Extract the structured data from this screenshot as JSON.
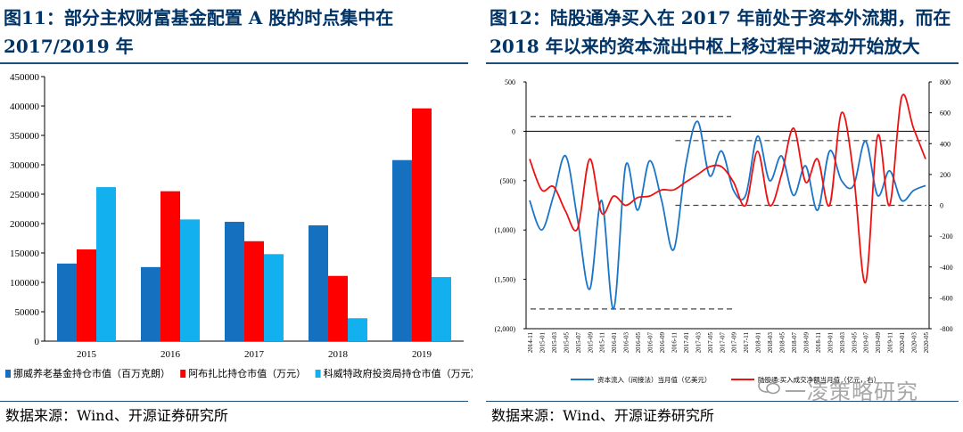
{
  "left": {
    "title": "图11：部分主权财富基金配置 A 股的时点集中在2017/2019 年",
    "source": "数据来源：Wind、开源证券研究所",
    "chart_data": {
      "type": "bar",
      "categories": [
        "2015",
        "2016",
        "2017",
        "2018",
        "2019"
      ],
      "ylim": [
        0,
        450000
      ],
      "yticks": [
        0,
        50000,
        100000,
        150000,
        200000,
        250000,
        300000,
        350000,
        400000,
        450000
      ],
      "series": [
        {
          "name": "挪威养老基金持仓市值（百万克朗）",
          "color": "#1670c0",
          "values": [
            132000,
            126000,
            203000,
            197000,
            308000
          ]
        },
        {
          "name": "阿布扎比持仓市值（万元）",
          "color": "#ff0000",
          "values": [
            156000,
            255000,
            170000,
            111000,
            396000
          ]
        },
        {
          "name": "科威特政府投资局持仓市值（万元）",
          "color": "#12b0ee",
          "values": [
            262000,
            207000,
            148000,
            39000,
            109000
          ]
        }
      ],
      "legend": "bottom",
      "grid": false
    }
  },
  "right": {
    "title": "图12：陆股通净买入在 2017 年前处于资本外流期，而在2018 年以来的资本流出中枢上移过程中波动开始放大",
    "source": "数据来源：Wind、开源证券研究所",
    "watermark": "一凌策略研究",
    "chart_data": {
      "type": "line",
      "x": [
        "2014-11",
        "2015-01",
        "2015-03",
        "2015-05",
        "2015-07",
        "2015-09",
        "2015-11",
        "2016-01",
        "2016-03",
        "2016-05",
        "2016-07",
        "2016-09",
        "2016-11",
        "2017-01",
        "2017-03",
        "2017-05",
        "2017-07",
        "2017-09",
        "2017-11",
        "2018-01",
        "2018-03",
        "2018-05",
        "2018-07",
        "2018-09",
        "2018-11",
        "2019-01",
        "2019-03",
        "2019-05",
        "2019-07",
        "2019-09",
        "2019-11",
        "2020-01",
        "2020-03",
        "2020-05"
      ],
      "y_left_ticks": [
        "500",
        "0",
        "(500)",
        "(1,000)",
        "(1,500)",
        "(2,000)"
      ],
      "y_left_range": [
        -2000,
        500
      ],
      "y_right_ticks": [
        "800",
        "600",
        "400",
        "200",
        "0",
        "-200",
        "-400",
        "-600",
        "-800"
      ],
      "y_right_range": [
        -800,
        800
      ],
      "series": [
        {
          "name": "资本流入（间接法）当月值（亿美元）",
          "axis": "left",
          "color": "#1a75c9",
          "values": [
            -700,
            -1000,
            -650,
            -250,
            -900,
            -1600,
            -700,
            -1800,
            -350,
            -800,
            -300,
            -700,
            -1200,
            -350,
            100,
            -450,
            -200,
            -600,
            -650,
            -50,
            -500,
            -250,
            -650,
            -350,
            -800,
            -200,
            -500,
            -550,
            -100,
            -650,
            -400,
            -700,
            -600,
            -550
          ]
        },
        {
          "name": "陆股通:买入成交净额当月值（亿元，右）",
          "axis": "right",
          "color": "#ee1111",
          "values": [
            300,
            100,
            120,
            -40,
            -150,
            300,
            -50,
            60,
            0,
            50,
            60,
            100,
            100,
            150,
            200,
            250,
            250,
            150,
            0,
            350,
            0,
            200,
            500,
            150,
            300,
            0,
            600,
            200,
            -500,
            450,
            0,
            700,
            500,
            300
          ]
        }
      ],
      "reference_lines_left": [
        150,
        -1800
      ],
      "reference_lines_right": [
        420,
        0
      ],
      "legend": "bottom"
    }
  }
}
